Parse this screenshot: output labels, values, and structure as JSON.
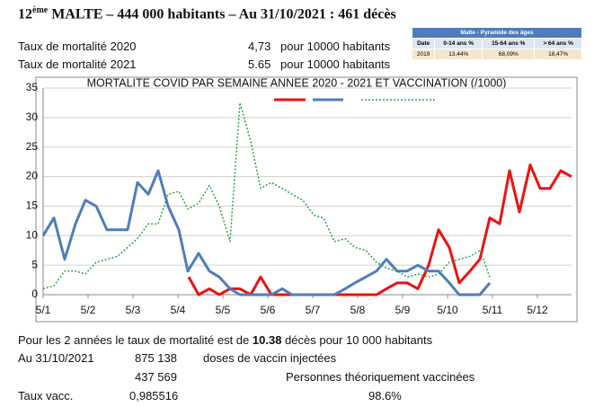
{
  "header": {
    "num": "12",
    "sup": "ème",
    "title": "MALTE – 444 000 habitants – Au 31/10/2021 : 461 décès"
  },
  "rates": [
    [
      "Taux de mortalité 2020",
      "4,73",
      "pour 10000 habitants"
    ],
    [
      "Taux de mortalité 2021",
      "5.65",
      "pour 10000 habitants"
    ]
  ],
  "pyramid": {
    "title": "Malte - Pyramide des âges",
    "headers": [
      "Date",
      "0-14 ans %",
      "15-64 ans %",
      "> 64 ans %"
    ],
    "row": [
      "2019",
      "13,44%",
      "68,09%",
      "18,47%"
    ]
  },
  "chart_data": {
    "type": "line",
    "title": "MORTALITE COVID PAR SEMAINE ANNEE 2020 - 2021 ET VACCINATION (/1000)",
    "xlim": [
      1,
      12.76
    ],
    "xticks": [
      {
        "value": 1,
        "label": "5/1"
      },
      {
        "value": 2,
        "label": "5/2"
      },
      {
        "value": 3,
        "label": "5/3"
      },
      {
        "value": 4,
        "label": "5/4"
      },
      {
        "value": 5,
        "label": "5/5"
      },
      {
        "value": 6,
        "label": "5/6"
      },
      {
        "value": 7,
        "label": "5/7"
      },
      {
        "value": 8,
        "label": "5/8"
      },
      {
        "value": 9,
        "label": "5/9"
      },
      {
        "value": 10,
        "label": "5/10"
      },
      {
        "value": 11,
        "label": "5/11"
      },
      {
        "value": 12,
        "label": "5/12"
      }
    ],
    "ylim": [
      0,
      35
    ],
    "yticks": [
      0,
      5,
      10,
      15,
      20,
      25,
      30,
      35
    ],
    "grid": true,
    "series": [
      {
        "color": "#ee1111",
        "width": 3,
        "dash": "none",
        "x": [
          4.24,
          4.46,
          4.7,
          4.92,
          5.16,
          5.38,
          5.62,
          5.84,
          6.08,
          6.32,
          6.54,
          6.78,
          7.02,
          7.24,
          7.48,
          7.72,
          7.94,
          8.18,
          8.42,
          8.64,
          8.88,
          9.1,
          9.34,
          9.58,
          9.8,
          10.04,
          10.26,
          10.5,
          10.72,
          10.94,
          11.16,
          11.38,
          11.6,
          11.84,
          12.06,
          12.28,
          12.52,
          12.76
        ],
        "values": [
          3,
          0,
          1,
          0,
          1,
          1,
          0,
          3,
          0,
          0,
          0,
          0,
          0,
          0,
          0,
          0,
          0,
          0,
          0,
          1,
          2,
          2,
          1,
          5,
          11,
          8,
          2,
          4,
          6,
          13,
          12,
          21,
          14,
          22,
          18,
          18,
          21,
          20
        ]
      },
      {
        "color": "#4f7dbb",
        "width": 3,
        "dash": "none",
        "x": [
          1,
          1.24,
          1.48,
          1.72,
          1.94,
          2.18,
          2.42,
          2.66,
          2.88,
          3.1,
          3.34,
          3.56,
          3.78,
          4.02,
          4.22,
          4.46,
          4.7,
          4.92,
          5.16,
          5.38,
          5.62,
          5.84,
          6.08,
          6.32,
          6.54,
          6.78,
          7.02,
          7.24,
          7.48,
          7.72,
          7.94,
          8.18,
          8.42,
          8.64,
          8.88,
          9.1,
          9.34,
          9.58,
          9.8,
          10.04,
          10.26,
          10.5,
          10.72,
          10.94
        ],
        "values": [
          10,
          13,
          6,
          12,
          16,
          15,
          11,
          11,
          11,
          19,
          17,
          21,
          15,
          11,
          4,
          7,
          4,
          3,
          1,
          0,
          0,
          0,
          0,
          1,
          0,
          0,
          0,
          0,
          0,
          1,
          2,
          3,
          4,
          6,
          4,
          4,
          5,
          4,
          4,
          2,
          0,
          0,
          0,
          2
        ]
      },
      {
        "color": "#2ea043",
        "width": 1.5,
        "dash": "2 2",
        "x": [
          1,
          1.24,
          1.48,
          1.72,
          1.94,
          2.18,
          2.42,
          2.66,
          2.88,
          3.1,
          3.34,
          3.56,
          3.78,
          4.02,
          4.22,
          4.46,
          4.7,
          4.92,
          5.16,
          5.38,
          5.62,
          5.84,
          6.08,
          6.32,
          6.54,
          6.78,
          7.02,
          7.24,
          7.48,
          7.72,
          7.94,
          8.18,
          8.42,
          8.64,
          8.88,
          9.1,
          9.34,
          9.58,
          9.8,
          10.04,
          10.26,
          10.5,
          10.72,
          10.94
        ],
        "values": [
          1,
          1.5,
          4,
          4,
          3.5,
          5.5,
          6,
          6.5,
          8,
          9.5,
          12,
          12,
          17,
          17.5,
          14.5,
          15.5,
          18.5,
          15,
          9,
          32.5,
          26,
          18,
          19,
          18,
          17,
          16,
          13.5,
          13,
          9,
          9.5,
          8,
          7.5,
          5.5,
          4.5,
          4,
          3,
          3.5,
          3,
          3.5,
          5.5,
          6,
          6.5,
          7.5,
          3
        ]
      }
    ]
  },
  "footer": {
    "line1a": "Pour les 2 années le taux de mortalité est de ",
    "line1b": "10.38",
    "line1c": " décès pour 10 000 habitants",
    "rows": [
      [
        "Au 31/10/2021",
        "875 138",
        "doses de vaccin injectées"
      ],
      [
        "437 569",
        "Personnes théoriquement vaccinées"
      ],
      [
        "Taux vacc.",
        "0,985516",
        "98.6%"
      ]
    ]
  }
}
